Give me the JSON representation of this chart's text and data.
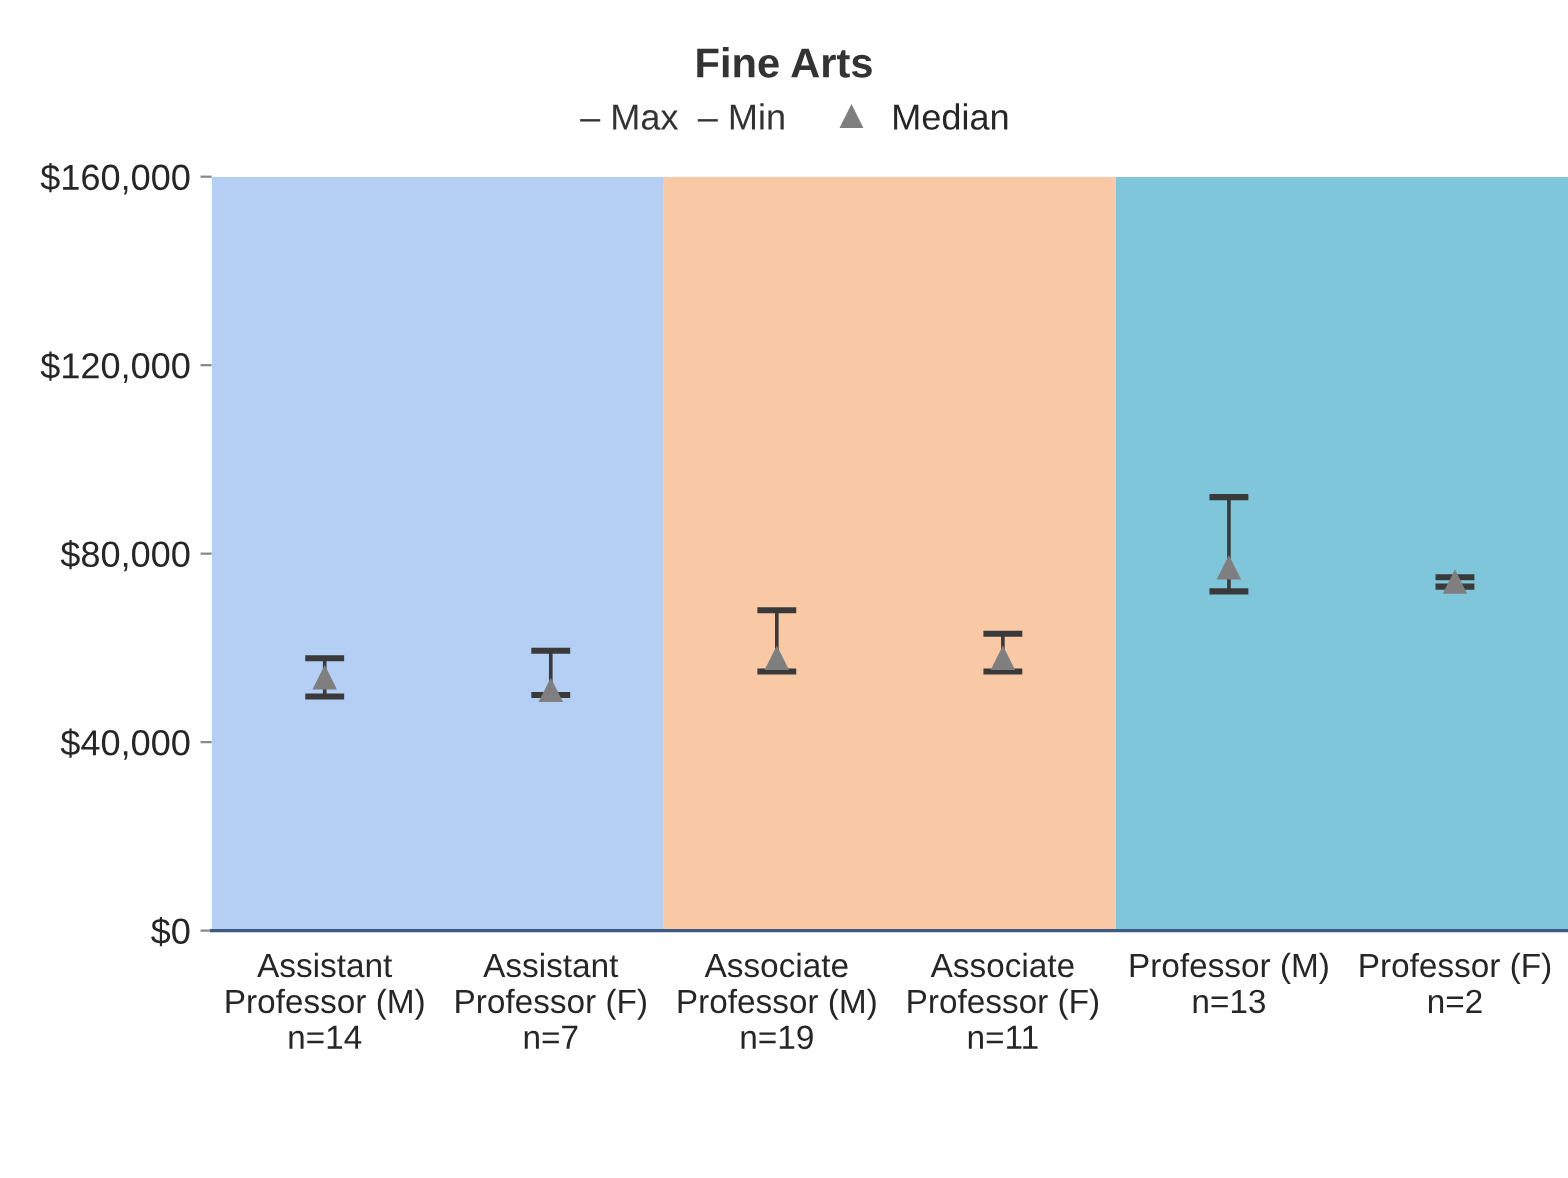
{
  "chart_data": {
    "type": "scatter",
    "title": "Fine Arts",
    "categories": [
      "Assistant\nProfessor (M)\nn=14",
      "Assistant\nProfessor (F)\nn=7",
      "Associate\nProfessor (M)\nn=19",
      "Associate\nProfessor (F)\nn=11",
      "Professor (M)\nn=13",
      "Professor (F)\nn=2"
    ],
    "series": [
      {
        "name": "Median",
        "color": "#7f7f7f",
        "marker": "triangle",
        "values": [
          53700,
          51000,
          57800,
          57800,
          77000,
          74000
        ],
        "errors": [
          [
            49700,
            57800
          ],
          [
            50000,
            59400
          ],
          [
            55000,
            68000
          ],
          [
            55000,
            63000
          ],
          [
            72000,
            92000
          ],
          [
            73000,
            75000
          ]
        ]
      }
    ],
    "annotations": [
      "‒ Max",
      "‒ Min"
    ],
    "bands": [
      {
        "axis": "x",
        "from": "Assistant\nProfessor (M)\nn=14",
        "to": "Assistant\nProfessor (F)\nn=7",
        "color": "#b4cff3"
      },
      {
        "axis": "x",
        "from": "Associate\nProfessor (M)\nn=19",
        "to": "Associate\nProfessor (F)\nn=11",
        "color": "#f9c9a6"
      },
      {
        "axis": "x",
        "from": "Professor (M)\nn=13",
        "to": "Professor (F)\nn=2",
        "color": "#7fc6db"
      }
    ],
    "ylim": [
      0,
      160000
    ],
    "yticks": [
      {
        "value": 0,
        "label": "$0"
      },
      {
        "value": 40000,
        "label": "$40,000"
      },
      {
        "value": 80000,
        "label": "$80,000"
      },
      {
        "value": 120000,
        "label": "$120,000"
      },
      {
        "value": 160000,
        "label": "$160,000"
      }
    ],
    "legend": "top",
    "grid": false
  }
}
